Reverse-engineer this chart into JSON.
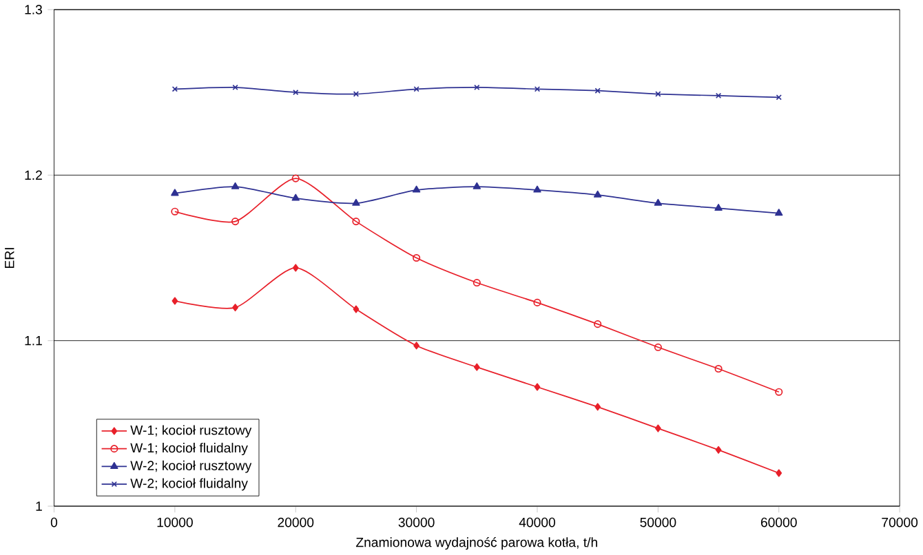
{
  "chart_data": {
    "type": "line",
    "xlabel": "Znamionowa wydajność parowa kotła, t/h",
    "ylabel": "ERI",
    "x": [
      10000,
      15000,
      20000,
      25000,
      30000,
      35000,
      40000,
      45000,
      50000,
      55000,
      60000
    ],
    "xlim": [
      0,
      70000
    ],
    "xticks": [
      0,
      10000,
      20000,
      30000,
      40000,
      50000,
      60000,
      70000
    ],
    "ylim": [
      1,
      1.3
    ],
    "yticks": [
      1,
      1.1,
      1.2,
      1.3
    ],
    "grid": "y",
    "legend": "bottom left",
    "series": [
      {
        "name": "W-1; kocioł rusztowy",
        "color": "#e8202a",
        "marker": "diamond",
        "values": [
          1.124,
          1.12,
          1.144,
          1.119,
          1.097,
          1.084,
          1.072,
          1.06,
          1.047,
          1.034,
          1.02
        ]
      },
      {
        "name": "W-1; kocioł fluidalny",
        "color": "#e8202a",
        "marker": "circle",
        "values": [
          1.178,
          1.172,
          1.198,
          1.172,
          1.15,
          1.135,
          1.123,
          1.11,
          1.096,
          1.083,
          1.069
        ]
      },
      {
        "name": "W-2; kocioł rusztowy",
        "color": "#2e3192",
        "marker": "triangle",
        "values": [
          1.189,
          1.193,
          1.186,
          1.183,
          1.191,
          1.193,
          1.191,
          1.188,
          1.183,
          1.18,
          1.177
        ]
      },
      {
        "name": "W-2; kocioł fluidalny",
        "color": "#2e3192",
        "marker": "cross",
        "values": [
          1.252,
          1.253,
          1.25,
          1.249,
          1.252,
          1.253,
          1.252,
          1.251,
          1.249,
          1.248,
          1.247
        ]
      }
    ]
  }
}
